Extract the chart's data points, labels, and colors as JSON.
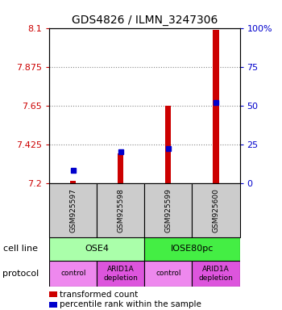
{
  "title": "GDS4826 / ILMN_3247306",
  "samples": [
    "GSM925597",
    "GSM925598",
    "GSM925599",
    "GSM925600"
  ],
  "transformed_counts": [
    7.21,
    7.37,
    7.65,
    8.09
  ],
  "percentile_ranks": [
    8,
    20,
    22,
    52
  ],
  "ymin": 7.2,
  "ymax": 8.1,
  "yticks": [
    7.2,
    7.425,
    7.65,
    7.875,
    8.1
  ],
  "ytick_labels": [
    "7.2",
    "7.425",
    "7.65",
    "7.875",
    "8.1"
  ],
  "y2ticks": [
    0,
    25,
    50,
    75,
    100
  ],
  "y2tick_labels": [
    "0",
    "25",
    "50",
    "75",
    "100%"
  ],
  "bar_color": "#cc0000",
  "dot_color": "#0000cc",
  "cell_lines": [
    {
      "label": "OSE4",
      "span": [
        0,
        2
      ],
      "color": "#aaffaa"
    },
    {
      "label": "IOSE80pc",
      "span": [
        2,
        4
      ],
      "color": "#44ee44"
    }
  ],
  "protocols": [
    {
      "label": "control",
      "span": [
        0,
        1
      ],
      "color": "#ee88ee"
    },
    {
      "label": "ARID1A\ndepletion",
      "span": [
        1,
        2
      ],
      "color": "#dd55dd"
    },
    {
      "label": "control",
      "span": [
        2,
        3
      ],
      "color": "#ee88ee"
    },
    {
      "label": "ARID1A\ndepletion",
      "span": [
        3,
        4
      ],
      "color": "#dd55dd"
    }
  ],
  "legend_items": [
    {
      "color": "#cc0000",
      "label": "transformed count"
    },
    {
      "color": "#0000cc",
      "label": "percentile rank within the sample"
    }
  ],
  "ylabel_color": "#cc0000",
  "y2label_color": "#0000cc",
  "grid_color": "#888888",
  "background_color": "#ffffff",
  "plot_bg_color": "#cccccc",
  "bar_width": 0.12,
  "dot_size": 5,
  "title_fontsize": 10,
  "tick_fontsize": 8,
  "sample_fontsize": 6.5,
  "cell_fontsize": 8,
  "proto_fontsize": 6.5,
  "legend_fontsize": 7.5,
  "label_fontsize": 8
}
